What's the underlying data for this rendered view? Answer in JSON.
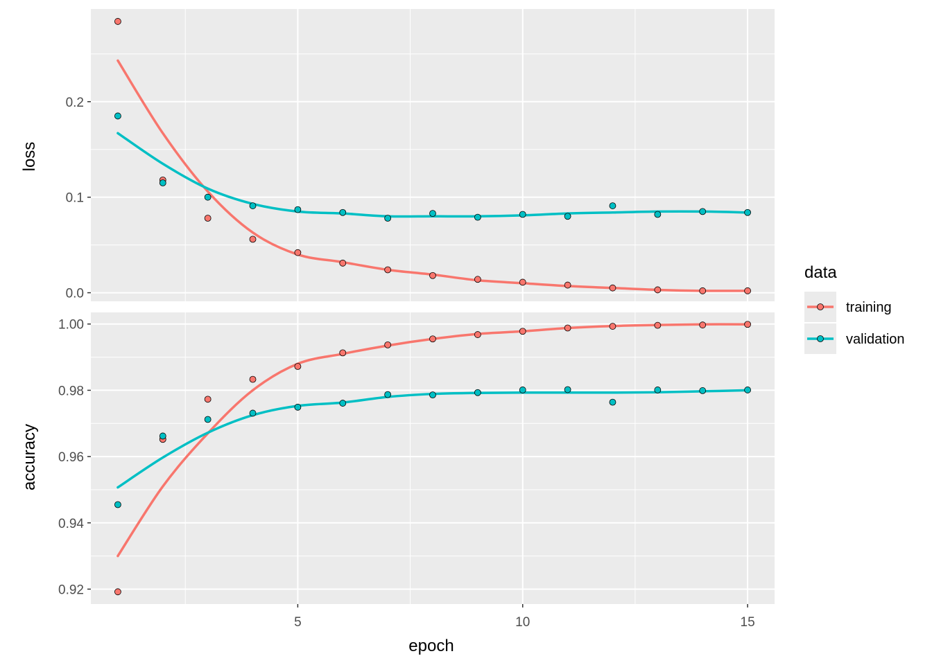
{
  "chart_data": {
    "type": "scatter",
    "xlabel": "epoch",
    "x": [
      1,
      2,
      3,
      4,
      5,
      6,
      7,
      8,
      9,
      10,
      11,
      12,
      13,
      14,
      15
    ],
    "xlim": [
      0.4,
      15.6
    ],
    "x_ticks": [
      5,
      10,
      15
    ],
    "panels": [
      {
        "metric": "loss",
        "ylim": [
          -0.009,
          0.297
        ],
        "y_ticks": [
          0.0,
          0.1,
          0.2
        ],
        "y_tick_labels": [
          "0.0",
          "0.1",
          "0.2"
        ],
        "series": [
          {
            "name": "training",
            "values": [
              0.284,
              0.118,
              0.078,
              0.056,
              0.042,
              0.031,
              0.024,
              0.018,
              0.014,
              0.011,
              0.008,
              0.005,
              0.003,
              0.002,
              0.002
            ],
            "smooth": [
              0.243,
              0.167,
              0.106,
              0.063,
              0.04,
              0.032,
              0.024,
              0.019,
              0.013,
              0.01,
              0.007,
              0.005,
              0.003,
              0.002,
              0.002
            ]
          },
          {
            "name": "validation",
            "values": [
              0.185,
              0.115,
              0.1,
              0.091,
              0.087,
              0.084,
              0.078,
              0.083,
              0.079,
              0.082,
              0.08,
              0.091,
              0.082,
              0.085,
              0.084
            ],
            "smooth": [
              0.167,
              0.135,
              0.109,
              0.093,
              0.085,
              0.083,
              0.08,
              0.08,
              0.08,
              0.081,
              0.083,
              0.084,
              0.085,
              0.085,
              0.084
            ]
          }
        ]
      },
      {
        "metric": "accuracy",
        "ylim": [
          0.9155,
          1.0035
        ],
        "y_ticks": [
          0.92,
          0.94,
          0.96,
          0.98,
          1.0
        ],
        "y_tick_labels": [
          "0.92",
          "0.94",
          "0.96",
          "0.98",
          "1.00"
        ],
        "series": [
          {
            "name": "training",
            "values": [
              0.9192,
              0.9652,
              0.9773,
              0.9833,
              0.9872,
              0.9913,
              0.9937,
              0.9955,
              0.9968,
              0.9978,
              0.9988,
              0.9993,
              0.9996,
              0.9997,
              0.9999
            ],
            "smooth": [
              0.93,
              0.951,
              0.967,
              0.98,
              0.988,
              0.991,
              0.9935,
              0.9955,
              0.997,
              0.9978,
              0.9988,
              0.9994,
              0.9997,
              0.9999,
              0.9999
            ]
          },
          {
            "name": "validation",
            "values": [
              0.9455,
              0.9662,
              0.9712,
              0.9731,
              0.9749,
              0.9761,
              0.9787,
              0.9786,
              0.9793,
              0.9801,
              0.9802,
              0.9764,
              0.9801,
              0.9799,
              0.9801
            ],
            "smooth": [
              0.9507,
              0.9597,
              0.9672,
              0.9725,
              0.9753,
              0.9763,
              0.978,
              0.9789,
              0.9792,
              0.9793,
              0.9793,
              0.9793,
              0.9794,
              0.9797,
              0.98
            ]
          }
        ]
      }
    ],
    "legend": {
      "title": "data",
      "position": "right",
      "items": [
        "training",
        "validation"
      ]
    },
    "colors": {
      "training": "#F8766D",
      "validation": "#00BFC4",
      "panel_bg": "#EBEBEB",
      "grid": "#FFFFFF"
    },
    "grid": true
  }
}
